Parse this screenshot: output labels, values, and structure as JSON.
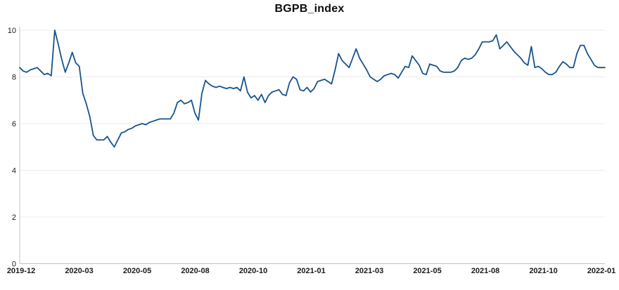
{
  "chart_data": {
    "type": "line",
    "title": "BGPB_index",
    "series": [
      {
        "name": "BGPB_index",
        "values": [
          8.4,
          8.25,
          8.2,
          8.3,
          8.35,
          8.4,
          8.25,
          8.1,
          8.15,
          8.05,
          10.0,
          9.4,
          8.75,
          8.2,
          8.6,
          9.05,
          8.6,
          8.45,
          7.3,
          6.85,
          6.3,
          5.5,
          5.3,
          5.3,
          5.3,
          5.45,
          5.2,
          5.0,
          5.3,
          5.6,
          5.65,
          5.75,
          5.8,
          5.9,
          5.95,
          6.0,
          5.95,
          6.05,
          6.1,
          6.15,
          6.2,
          6.2,
          6.2,
          6.2,
          6.45,
          6.9,
          7.0,
          6.85,
          6.9,
          7.0,
          6.45,
          6.15,
          7.3,
          7.85,
          7.7,
          7.6,
          7.55,
          7.6,
          7.55,
          7.5,
          7.55,
          7.5,
          7.55,
          7.4,
          8.0,
          7.35,
          7.1,
          7.2,
          7.0,
          7.25,
          6.9,
          7.2,
          7.35,
          7.4,
          7.45,
          7.25,
          7.2,
          7.75,
          8.0,
          7.9,
          7.45,
          7.4,
          7.55,
          7.35,
          7.5,
          7.8,
          7.85,
          7.9,
          7.8,
          7.7,
          8.3,
          9.0,
          8.7,
          8.55,
          8.4,
          8.8,
          9.2,
          8.8,
          8.55,
          8.3,
          8.0,
          7.9,
          7.8,
          7.9,
          8.05,
          8.1,
          8.15,
          8.1,
          7.95,
          8.2,
          8.45,
          8.4,
          8.9,
          8.7,
          8.5,
          8.15,
          8.1,
          8.55,
          8.5,
          8.45,
          8.25,
          8.2,
          8.2,
          8.2,
          8.25,
          8.4,
          8.7,
          8.8,
          8.75,
          8.8,
          8.95,
          9.2,
          9.5,
          9.5,
          9.5,
          9.55,
          9.8,
          9.2,
          9.35,
          9.5,
          9.3,
          9.1,
          8.95,
          8.8,
          8.6,
          8.5,
          9.3,
          8.4,
          8.45,
          8.35,
          8.2,
          8.1,
          8.1,
          8.2,
          8.45,
          8.65,
          8.55,
          8.4,
          8.4,
          9.0,
          9.35,
          9.35,
          9.0,
          8.75,
          8.5,
          8.4,
          8.4,
          8.4
        ]
      }
    ],
    "x_labels": [
      "2019-12",
      "2020-03",
      "2020-05",
      "2020-08",
      "2020-10",
      "2021-01",
      "2021-03",
      "2021-05",
      "2021-08",
      "2021-10",
      "2022-01"
    ],
    "y_ticks": [
      0,
      2,
      4,
      6,
      8,
      10
    ],
    "ylim": [
      0,
      10
    ],
    "grid": "horizontal-only",
    "legend": "none",
    "line_color": "#17538c",
    "grid_color": "#ececec",
    "axis_color": "#c2c2c2",
    "tick_text_color": "#1a1a1a",
    "background_color": "#ffffff"
  }
}
